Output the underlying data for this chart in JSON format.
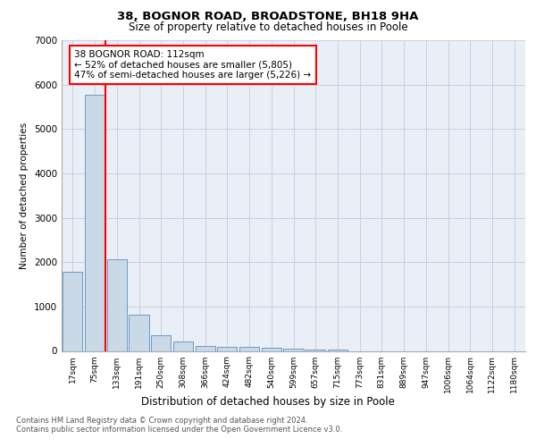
{
  "title1": "38, BOGNOR ROAD, BROADSTONE, BH18 9HA",
  "title2": "Size of property relative to detached houses in Poole",
  "xlabel": "Distribution of detached houses by size in Poole",
  "ylabel": "Number of detached properties",
  "bar_labels": [
    "17sqm",
    "75sqm",
    "133sqm",
    "191sqm",
    "250sqm",
    "308sqm",
    "366sqm",
    "424sqm",
    "482sqm",
    "540sqm",
    "599sqm",
    "657sqm",
    "715sqm",
    "773sqm",
    "831sqm",
    "889sqm",
    "947sqm",
    "1006sqm",
    "1064sqm",
    "1122sqm",
    "1180sqm"
  ],
  "bar_values": [
    1780,
    5780,
    2060,
    820,
    360,
    210,
    120,
    100,
    95,
    80,
    55,
    40,
    30,
    0,
    0,
    0,
    0,
    0,
    0,
    0,
    0
  ],
  "bar_color": "#c9d9e8",
  "bar_edge_color": "#5a8fc0",
  "red_line_x": 1.5,
  "annotation_text": "38 BOGNOR ROAD: 112sqm\n← 52% of detached houses are smaller (5,805)\n47% of semi-detached houses are larger (5,226) →",
  "ylim": [
    0,
    7000
  ],
  "yticks": [
    0,
    1000,
    2000,
    3000,
    4000,
    5000,
    6000,
    7000
  ],
  "grid_color": "#c8d0de",
  "bg_color": "#eaeff7",
  "footnote": "Contains HM Land Registry data © Crown copyright and database right 2024.\nContains public sector information licensed under the Open Government Licence v3.0."
}
